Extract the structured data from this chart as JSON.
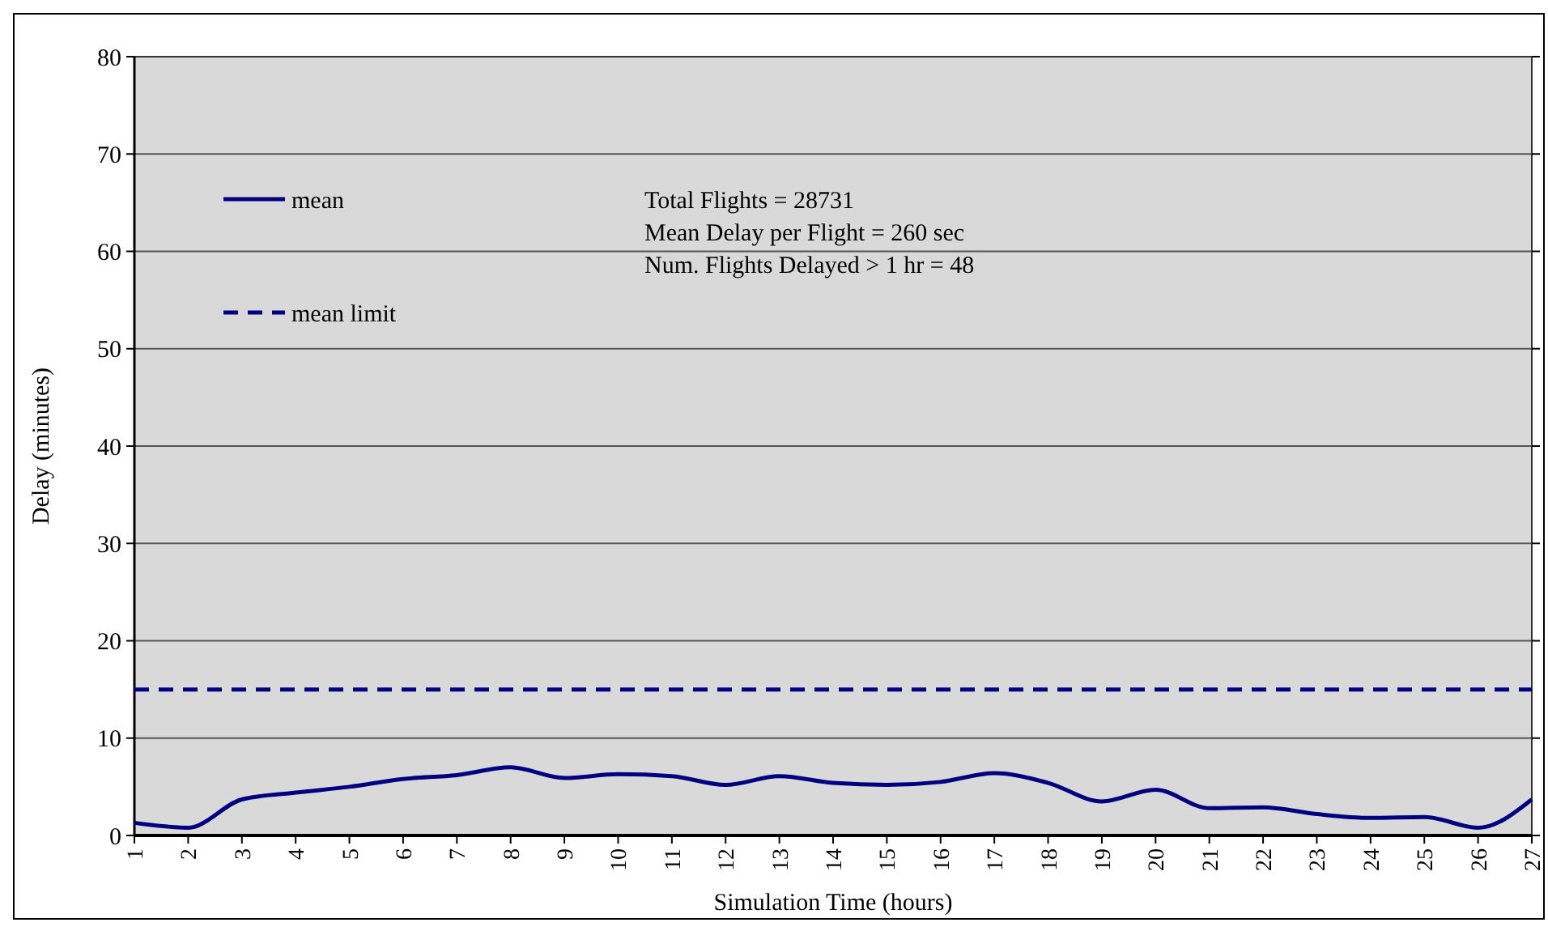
{
  "chart_data": {
    "type": "line",
    "xlabel": "Simulation Time (hours)",
    "ylabel": "Delay (minutes)",
    "categories": [
      "1",
      "2",
      "3",
      "4",
      "5",
      "6",
      "7",
      "8",
      "9",
      "10",
      "11",
      "12",
      "13",
      "14",
      "15",
      "16",
      "17",
      "18",
      "19",
      "20",
      "21",
      "22",
      "23",
      "24",
      "25",
      "26",
      "27"
    ],
    "series": [
      {
        "name": "mean",
        "color": "#000080",
        "line_style": "solid",
        "values": [
          1.3,
          0.8,
          3.7,
          4.4,
          5.0,
          5.8,
          6.2,
          7.0,
          5.9,
          6.3,
          6.1,
          5.2,
          6.1,
          5.4,
          5.2,
          5.5,
          6.4,
          5.4,
          3.5,
          4.7,
          2.8,
          2.9,
          2.2,
          1.8,
          1.9,
          0.8,
          3.7
        ]
      },
      {
        "name": "mean limit",
        "color": "#000080",
        "line_style": "dashed",
        "values": [
          15,
          15,
          15,
          15,
          15,
          15,
          15,
          15,
          15,
          15,
          15,
          15,
          15,
          15,
          15,
          15,
          15,
          15,
          15,
          15,
          15,
          15,
          15,
          15,
          15,
          15,
          15
        ]
      }
    ],
    "ylim": [
      0,
      80
    ],
    "yticks": [
      0,
      10,
      20,
      30,
      40,
      50,
      60,
      70,
      80
    ],
    "grid": "y",
    "legend": "top left",
    "marker": "none",
    "annotations": [
      "Total Flights = 28731",
      "Mean Delay per Flight = 260 sec",
      "Num. Flights Delayed > 1 hr = 48"
    ]
  }
}
